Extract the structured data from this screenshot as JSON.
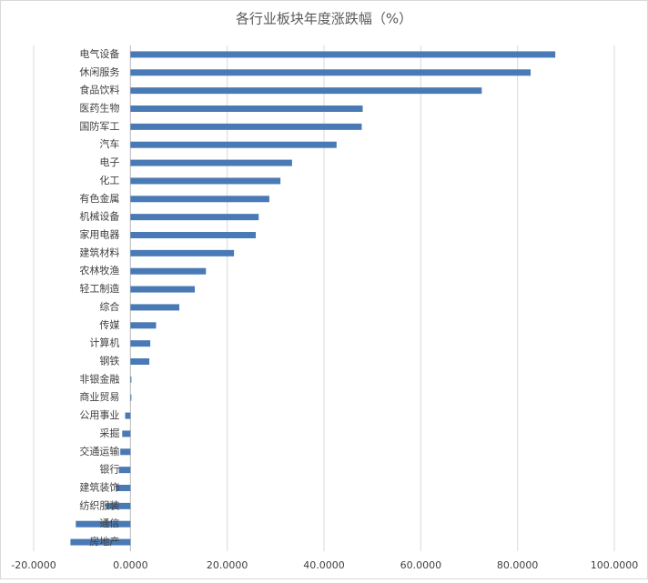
{
  "chart_data": {
    "type": "barh",
    "title": "各行业板块年度涨跌幅（%）",
    "categories": [
      "电气设备",
      "休闲服务",
      "食品饮料",
      "医药生物",
      "国防军工",
      "汽车",
      "电子",
      "化工",
      "有色金属",
      "机械设备",
      "家用电器",
      "建筑材料",
      "农林牧渔",
      "轻工制造",
      "综合",
      "传媒",
      "计算机",
      "钢铁",
      "非银金融",
      "商业贸易",
      "公用事业",
      "采掘",
      "交通运输",
      "银行",
      "建筑装饰",
      "纺织服装",
      "通信",
      "房地产"
    ],
    "values": [
      87.8,
      82.7,
      72.6,
      48.0,
      47.8,
      42.6,
      33.4,
      31.0,
      28.7,
      26.5,
      25.9,
      21.4,
      15.6,
      13.3,
      10.1,
      5.3,
      4.1,
      3.9,
      0.2,
      0.2,
      -1.1,
      -1.7,
      -2.1,
      -2.4,
      -3.0,
      -5.0,
      -11.3,
      -12.4
    ],
    "color": "#4a7ab5",
    "xlim": [
      -20,
      100
    ],
    "xticks": [
      {
        "value": -20,
        "label": "-20.0000"
      },
      {
        "value": 0,
        "label": "0.0000"
      },
      {
        "value": 20,
        "label": "20.0000"
      },
      {
        "value": 40,
        "label": "40.0000"
      },
      {
        "value": 60,
        "label": "60.0000"
      },
      {
        "value": 80,
        "label": "80.0000"
      },
      {
        "value": 100,
        "label": "100.0000"
      }
    ],
    "grid": true
  }
}
